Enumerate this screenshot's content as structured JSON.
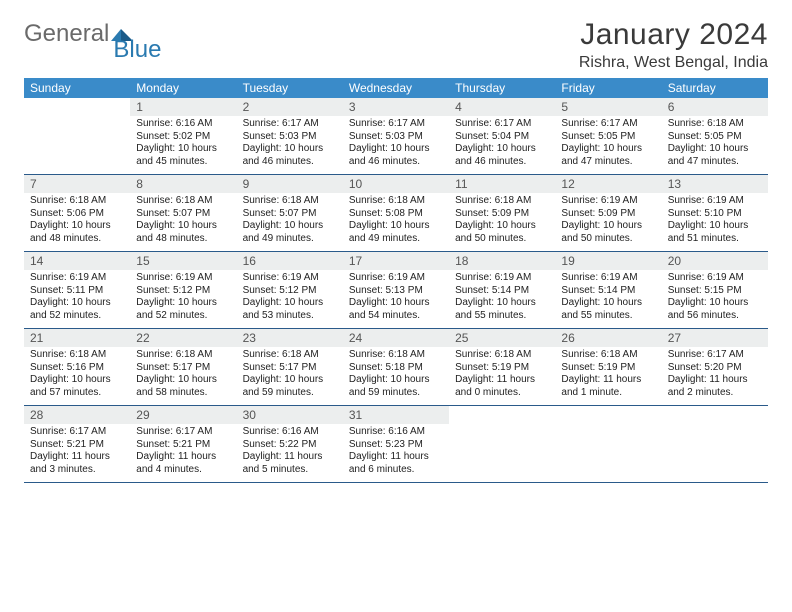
{
  "brand": {
    "general": "General",
    "blue": "Blue"
  },
  "title": "January 2024",
  "location": "Rishra, West Bengal, India",
  "colors": {
    "header_bg": "#3a8bc9",
    "header_text": "#ffffff",
    "daynum_bg": "#eceeee",
    "row_border": "#2a5a8a",
    "brand_gray": "#6a6a6a",
    "brand_blue": "#2a7ab0"
  },
  "weekdays": [
    "Sunday",
    "Monday",
    "Tuesday",
    "Wednesday",
    "Thursday",
    "Friday",
    "Saturday"
  ],
  "weeks": [
    [
      null,
      {
        "n": "1",
        "sr": "6:16 AM",
        "ss": "5:02 PM",
        "dl": "10 hours and 45 minutes."
      },
      {
        "n": "2",
        "sr": "6:17 AM",
        "ss": "5:03 PM",
        "dl": "10 hours and 46 minutes."
      },
      {
        "n": "3",
        "sr": "6:17 AM",
        "ss": "5:03 PM",
        "dl": "10 hours and 46 minutes."
      },
      {
        "n": "4",
        "sr": "6:17 AM",
        "ss": "5:04 PM",
        "dl": "10 hours and 46 minutes."
      },
      {
        "n": "5",
        "sr": "6:17 AM",
        "ss": "5:05 PM",
        "dl": "10 hours and 47 minutes."
      },
      {
        "n": "6",
        "sr": "6:18 AM",
        "ss": "5:05 PM",
        "dl": "10 hours and 47 minutes."
      }
    ],
    [
      {
        "n": "7",
        "sr": "6:18 AM",
        "ss": "5:06 PM",
        "dl": "10 hours and 48 minutes."
      },
      {
        "n": "8",
        "sr": "6:18 AM",
        "ss": "5:07 PM",
        "dl": "10 hours and 48 minutes."
      },
      {
        "n": "9",
        "sr": "6:18 AM",
        "ss": "5:07 PM",
        "dl": "10 hours and 49 minutes."
      },
      {
        "n": "10",
        "sr": "6:18 AM",
        "ss": "5:08 PM",
        "dl": "10 hours and 49 minutes."
      },
      {
        "n": "11",
        "sr": "6:18 AM",
        "ss": "5:09 PM",
        "dl": "10 hours and 50 minutes."
      },
      {
        "n": "12",
        "sr": "6:19 AM",
        "ss": "5:09 PM",
        "dl": "10 hours and 50 minutes."
      },
      {
        "n": "13",
        "sr": "6:19 AM",
        "ss": "5:10 PM",
        "dl": "10 hours and 51 minutes."
      }
    ],
    [
      {
        "n": "14",
        "sr": "6:19 AM",
        "ss": "5:11 PM",
        "dl": "10 hours and 52 minutes."
      },
      {
        "n": "15",
        "sr": "6:19 AM",
        "ss": "5:12 PM",
        "dl": "10 hours and 52 minutes."
      },
      {
        "n": "16",
        "sr": "6:19 AM",
        "ss": "5:12 PM",
        "dl": "10 hours and 53 minutes."
      },
      {
        "n": "17",
        "sr": "6:19 AM",
        "ss": "5:13 PM",
        "dl": "10 hours and 54 minutes."
      },
      {
        "n": "18",
        "sr": "6:19 AM",
        "ss": "5:14 PM",
        "dl": "10 hours and 55 minutes."
      },
      {
        "n": "19",
        "sr": "6:19 AM",
        "ss": "5:14 PM",
        "dl": "10 hours and 55 minutes."
      },
      {
        "n": "20",
        "sr": "6:19 AM",
        "ss": "5:15 PM",
        "dl": "10 hours and 56 minutes."
      }
    ],
    [
      {
        "n": "21",
        "sr": "6:18 AM",
        "ss": "5:16 PM",
        "dl": "10 hours and 57 minutes."
      },
      {
        "n": "22",
        "sr": "6:18 AM",
        "ss": "5:17 PM",
        "dl": "10 hours and 58 minutes."
      },
      {
        "n": "23",
        "sr": "6:18 AM",
        "ss": "5:17 PM",
        "dl": "10 hours and 59 minutes."
      },
      {
        "n": "24",
        "sr": "6:18 AM",
        "ss": "5:18 PM",
        "dl": "10 hours and 59 minutes."
      },
      {
        "n": "25",
        "sr": "6:18 AM",
        "ss": "5:19 PM",
        "dl": "11 hours and 0 minutes."
      },
      {
        "n": "26",
        "sr": "6:18 AM",
        "ss": "5:19 PM",
        "dl": "11 hours and 1 minute."
      },
      {
        "n": "27",
        "sr": "6:17 AM",
        "ss": "5:20 PM",
        "dl": "11 hours and 2 minutes."
      }
    ],
    [
      {
        "n": "28",
        "sr": "6:17 AM",
        "ss": "5:21 PM",
        "dl": "11 hours and 3 minutes."
      },
      {
        "n": "29",
        "sr": "6:17 AM",
        "ss": "5:21 PM",
        "dl": "11 hours and 4 minutes."
      },
      {
        "n": "30",
        "sr": "6:16 AM",
        "ss": "5:22 PM",
        "dl": "11 hours and 5 minutes."
      },
      {
        "n": "31",
        "sr": "6:16 AM",
        "ss": "5:23 PM",
        "dl": "11 hours and 6 minutes."
      },
      null,
      null,
      null
    ]
  ],
  "labels": {
    "sunrise": "Sunrise:",
    "sunset": "Sunset:",
    "daylight": "Daylight:"
  }
}
